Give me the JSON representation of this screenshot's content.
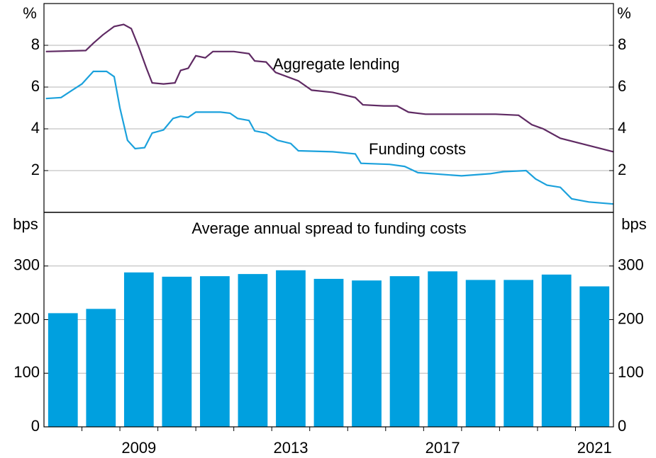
{
  "chart_data": [
    {
      "type": "line",
      "unit_label": "%",
      "xlim": [
        2007,
        2022
      ],
      "ylim": [
        0,
        10
      ],
      "yticks": [
        2,
        4,
        6,
        8
      ],
      "grid": true,
      "series": [
        {
          "name": "Aggregate lending",
          "color": "#5f2a63",
          "x": [
            2007.05,
            2008.1,
            2008.3,
            2008.55,
            2008.85,
            2009.1,
            2009.3,
            2009.5,
            2009.7,
            2009.85,
            2010.15,
            2010.45,
            2010.6,
            2010.8,
            2011.0,
            2011.25,
            2011.45,
            2012.0,
            2012.4,
            2012.55,
            2012.85,
            2013.1,
            2013.7,
            2014.05,
            2014.6,
            2015.2,
            2015.4,
            2015.95,
            2016.3,
            2016.6,
            2017.05,
            2017.8,
            2018.9,
            2019.5,
            2019.85,
            2020.15,
            2020.6,
            2021.35,
            2022.0
          ],
          "values": [
            7.7,
            7.75,
            8.1,
            8.5,
            8.9,
            9.0,
            8.8,
            7.9,
            6.9,
            6.2,
            6.15,
            6.2,
            6.8,
            6.9,
            7.5,
            7.4,
            7.7,
            7.7,
            7.6,
            7.25,
            7.2,
            6.7,
            6.3,
            5.85,
            5.75,
            5.5,
            5.15,
            5.1,
            5.1,
            4.8,
            4.7,
            4.7,
            4.7,
            4.65,
            4.2,
            4.0,
            3.55,
            3.2,
            2.9
          ]
        },
        {
          "name": "Funding costs",
          "color": "#1ba1dc",
          "x": [
            2007.05,
            2007.45,
            2007.7,
            2008.0,
            2008.3,
            2008.65,
            2008.85,
            2009.0,
            2009.2,
            2009.4,
            2009.65,
            2009.85,
            2010.15,
            2010.4,
            2010.6,
            2010.8,
            2011.0,
            2011.65,
            2011.9,
            2012.1,
            2012.4,
            2012.55,
            2012.85,
            2013.15,
            2013.5,
            2013.7,
            2014.6,
            2015.2,
            2015.35,
            2016.1,
            2016.5,
            2016.85,
            2018.0,
            2018.75,
            2019.1,
            2019.7,
            2019.95,
            2020.25,
            2020.6,
            2020.9,
            2021.35,
            2022.0
          ],
          "values": [
            5.45,
            5.5,
            5.8,
            6.15,
            6.75,
            6.75,
            6.5,
            5.0,
            3.45,
            3.05,
            3.1,
            3.8,
            3.95,
            4.5,
            4.6,
            4.55,
            4.8,
            4.8,
            4.75,
            4.5,
            4.4,
            3.9,
            3.8,
            3.45,
            3.3,
            2.95,
            2.9,
            2.8,
            2.35,
            2.3,
            2.2,
            1.9,
            1.75,
            1.85,
            1.95,
            2.0,
            1.6,
            1.3,
            1.2,
            0.65,
            0.5,
            0.4
          ]
        }
      ]
    },
    {
      "type": "bar",
      "title": "Average annual spread to funding costs",
      "unit_label": "bps",
      "categories": [
        null,
        null,
        "2009",
        null,
        null,
        null,
        "2013",
        null,
        null,
        null,
        "2017",
        null,
        null,
        null,
        "2021"
      ],
      "values": [
        212,
        220,
        288,
        280,
        281,
        285,
        292,
        276,
        273,
        281,
        290,
        274,
        274,
        284,
        262
      ],
      "color": "#00a0df",
      "ylim": [
        0,
        400
      ],
      "yticks": [
        0,
        100,
        200,
        300
      ],
      "grid": true
    }
  ]
}
